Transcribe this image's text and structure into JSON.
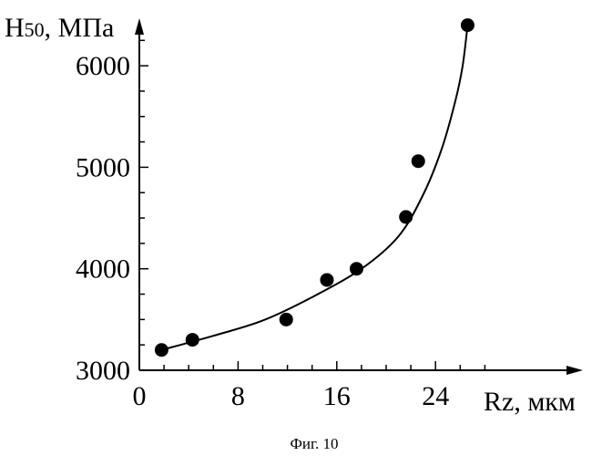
{
  "chart_data": {
    "type": "scatter",
    "ylabel_main": "H",
    "ylabel_sub": "50",
    "ylabel_unit": ", МПа",
    "xlabel": "Rz, мкм",
    "caption": "Фиг. 10",
    "xlim": [
      0,
      30
    ],
    "ylim": [
      3000,
      6500
    ],
    "x_ticks": [
      0,
      8,
      16,
      24
    ],
    "x_tick_labels": [
      "0",
      "8",
      "16",
      "24"
    ],
    "y_ticks": [
      3000,
      4000,
      5000,
      6000
    ],
    "y_tick_labels": [
      "3000",
      "4000",
      "5000",
      "6000"
    ],
    "series": [
      {
        "points": [
          {
            "x": 1.8,
            "y": 3200
          },
          {
            "x": 4.3,
            "y": 3300
          },
          {
            "x": 11.9,
            "y": 3500
          },
          {
            "x": 15.2,
            "y": 3890
          },
          {
            "x": 17.6,
            "y": 4000
          },
          {
            "x": 21.6,
            "y": 4510
          },
          {
            "x": 22.6,
            "y": 5060
          },
          {
            "x": 26.6,
            "y": 6400
          }
        ]
      }
    ],
    "trend_curve": [
      {
        "x": 1.8,
        "y": 3200
      },
      {
        "x": 6,
        "y": 3340
      },
      {
        "x": 10,
        "y": 3490
      },
      {
        "x": 14,
        "y": 3720
      },
      {
        "x": 18,
        "y": 4000
      },
      {
        "x": 21,
        "y": 4320
      },
      {
        "x": 23,
        "y": 4730
      },
      {
        "x": 24.5,
        "y": 5180
      },
      {
        "x": 25.6,
        "y": 5650
      },
      {
        "x": 26.2,
        "y": 6000
      },
      {
        "x": 26.6,
        "y": 6400
      }
    ],
    "grid": false
  }
}
